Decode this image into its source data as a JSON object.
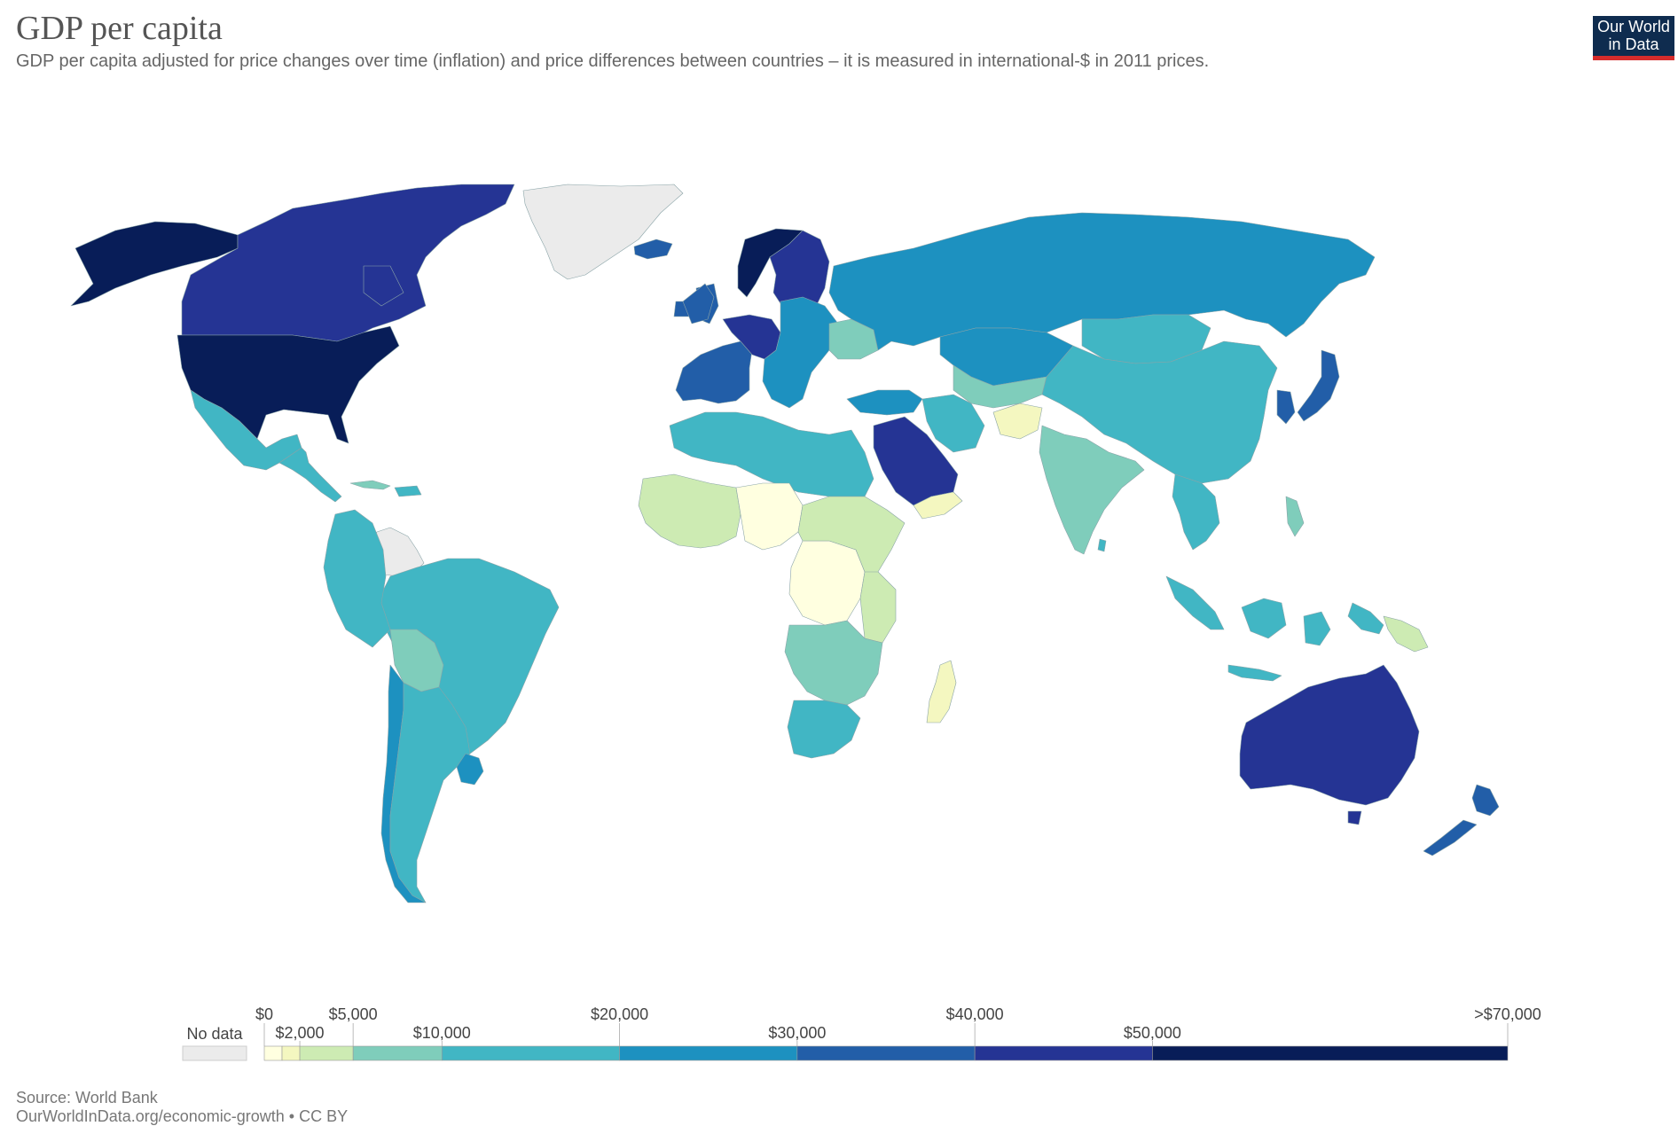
{
  "header": {
    "title": "GDP per capita",
    "subtitle": "GDP per capita adjusted for price changes over time (inflation) and price differences between countries – it is measured in international-$ in 2011 prices.",
    "logo_line1": "Our World",
    "logo_line2": "in Data"
  },
  "legend": {
    "no_data_label": "No data",
    "no_data_color": "#ebebeb",
    "bins": [
      {
        "from": 0,
        "to": 1000,
        "color": "#ffffe0"
      },
      {
        "from": 1000,
        "to": 2000,
        "color": "#f4f7c0"
      },
      {
        "from": 2000,
        "to": 5000,
        "color": "#cdebb3"
      },
      {
        "from": 5000,
        "to": 10000,
        "color": "#7fcdbb"
      },
      {
        "from": 10000,
        "to": 20000,
        "color": "#41b6c4"
      },
      {
        "from": 20000,
        "to": 30000,
        "color": "#1d91c0"
      },
      {
        "from": 30000,
        "to": 40000,
        "color": "#225ea8"
      },
      {
        "from": 40000,
        "to": 50000,
        "color": "#253494"
      },
      {
        "from": 50000,
        "to": 70000,
        "color": "#081d58"
      }
    ],
    "ticks": [
      {
        "value": 0,
        "label": "$0",
        "row": "upper"
      },
      {
        "value": 2000,
        "label": "$2,000",
        "row": "lower"
      },
      {
        "value": 5000,
        "label": "$5,000",
        "row": "upper"
      },
      {
        "value": 10000,
        "label": "$10,000",
        "row": "lower"
      },
      {
        "value": 20000,
        "label": "$20,000",
        "row": "upper"
      },
      {
        "value": 30000,
        "label": "$30,000",
        "row": "lower"
      },
      {
        "value": 40000,
        "label": "$40,000",
        "row": "upper"
      },
      {
        "value": 50000,
        "label": "$50,000",
        "row": "lower"
      },
      {
        "value": 70000,
        "label": ">$70,000",
        "row": "upper"
      }
    ]
  },
  "map": {
    "regions": [
      {
        "id": "greenland",
        "color": "#ebebeb"
      },
      {
        "id": "alaska",
        "color": "#081d58"
      },
      {
        "id": "canada",
        "color": "#253494"
      },
      {
        "id": "usa",
        "color": "#081d58"
      },
      {
        "id": "mexico",
        "color": "#41b6c4"
      },
      {
        "id": "central-america",
        "color": "#41b6c4"
      },
      {
        "id": "colombia-venezuela",
        "color": "#ebebeb"
      },
      {
        "id": "brazil",
        "color": "#41b6c4"
      },
      {
        "id": "peru",
        "color": "#41b6c4"
      },
      {
        "id": "bolivia",
        "color": "#7fcdbb"
      },
      {
        "id": "chile",
        "color": "#1d91c0"
      },
      {
        "id": "argentina",
        "color": "#41b6c4"
      },
      {
        "id": "uruguay",
        "color": "#1d91c0"
      },
      {
        "id": "iceland",
        "color": "#225ea8"
      },
      {
        "id": "norway",
        "color": "#081d58"
      },
      {
        "id": "sweden-finland",
        "color": "#253494"
      },
      {
        "id": "western-europe",
        "color": "#225ea8"
      },
      {
        "id": "central-europe",
        "color": "#253494"
      },
      {
        "id": "eastern-europe",
        "color": "#1d91c0"
      },
      {
        "id": "ukraine",
        "color": "#7fcdbb"
      },
      {
        "id": "russia",
        "color": "#1d91c0"
      },
      {
        "id": "turkey",
        "color": "#1d91c0"
      },
      {
        "id": "kazakhstan",
        "color": "#1d91c0"
      },
      {
        "id": "central-asia",
        "color": "#7fcdbb"
      },
      {
        "id": "mongolia",
        "color": "#41b6c4"
      },
      {
        "id": "china",
        "color": "#41b6c4"
      },
      {
        "id": "japan",
        "color": "#225ea8"
      },
      {
        "id": "korea",
        "color": "#225ea8"
      },
      {
        "id": "iran",
        "color": "#41b6c4"
      },
      {
        "id": "afghanistan",
        "color": "#f4f7c0"
      },
      {
        "id": "india",
        "color": "#7fcdbb"
      },
      {
        "id": "saudi-arabia",
        "color": "#253494"
      },
      {
        "id": "yemen",
        "color": "#f4f7c0"
      },
      {
        "id": "north-africa",
        "color": "#41b6c4"
      },
      {
        "id": "west-africa",
        "color": "#cdebb3"
      },
      {
        "id": "sahel",
        "color": "#ffffe0"
      },
      {
        "id": "central-africa",
        "color": "#ffffe0"
      },
      {
        "id": "east-africa",
        "color": "#cdebb3"
      },
      {
        "id": "southern-africa",
        "color": "#7fcdbb"
      },
      {
        "id": "south-africa",
        "color": "#41b6c4"
      },
      {
        "id": "madagascar",
        "color": "#f4f7c0"
      },
      {
        "id": "southeast-asia",
        "color": "#41b6c4"
      },
      {
        "id": "indonesia",
        "color": "#41b6c4"
      },
      {
        "id": "papua-new-guinea",
        "color": "#cdebb3"
      },
      {
        "id": "australia",
        "color": "#253494"
      },
      {
        "id": "new-zealand",
        "color": "#225ea8"
      }
    ]
  },
  "footer": {
    "source": "Source: World Bank",
    "url": "OurWorldInData.org/economic-growth • CC BY"
  }
}
